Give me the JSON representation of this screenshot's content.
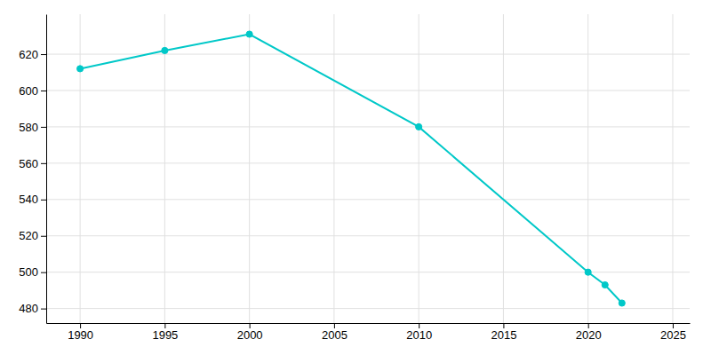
{
  "chart_data": {
    "type": "line",
    "x": [
      1990,
      1995,
      2000,
      2010,
      2020,
      2021,
      2022
    ],
    "values": [
      612,
      622,
      631,
      580,
      500,
      493,
      483
    ],
    "color": "#00c8c8",
    "marker": "circle",
    "xlim": [
      1988,
      2026
    ],
    "ylim": [
      472,
      642
    ],
    "xticks": [
      1990,
      1995,
      2000,
      2005,
      2010,
      2015,
      2020,
      2025
    ],
    "yticks": [
      480,
      500,
      520,
      540,
      560,
      580,
      600,
      620
    ],
    "grid": true
  }
}
